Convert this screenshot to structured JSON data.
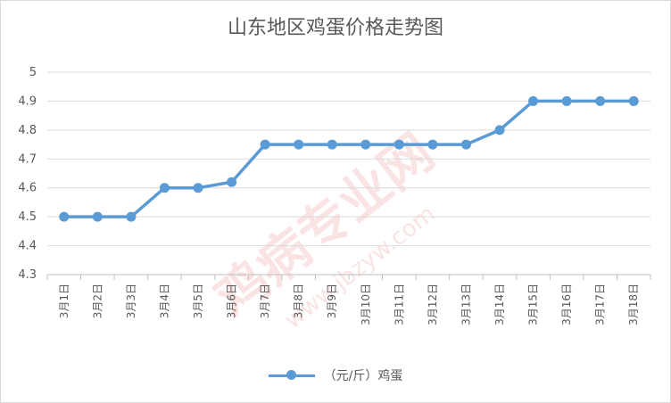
{
  "chart_data": {
    "type": "line",
    "title": "山东地区鸡蛋价格走势图",
    "categories": [
      "3月1日",
      "3月2日",
      "3月3日",
      "3月4日",
      "3月5日",
      "3月6日",
      "3月7日",
      "3月8日",
      "3月9日",
      "3月10日",
      "3月11日",
      "3月12日",
      "3月13日",
      "3月14日",
      "3月15日",
      "3月16日",
      "3月17日",
      "3月18日"
    ],
    "series": [
      {
        "name": "（元/斤）鸡蛋",
        "values": [
          4.5,
          4.5,
          4.5,
          4.6,
          4.6,
          4.62,
          4.75,
          4.75,
          4.75,
          4.75,
          4.75,
          4.75,
          4.75,
          4.8,
          4.9,
          4.9,
          4.9,
          4.9
        ]
      }
    ],
    "ylim": [
      4.3,
      5.0
    ],
    "yticks": [
      "4.3",
      "4.4",
      "4.5",
      "4.6",
      "4.7",
      "4.8",
      "4.9",
      "5"
    ],
    "grid": true,
    "legend": "bottom",
    "colors": {
      "series": "#5b9bd5",
      "grid": "#d9d9d9",
      "text": "#595959"
    }
  },
  "watermark": {
    "text": "鸡病专业网",
    "url": "www.jbzyw.com"
  }
}
